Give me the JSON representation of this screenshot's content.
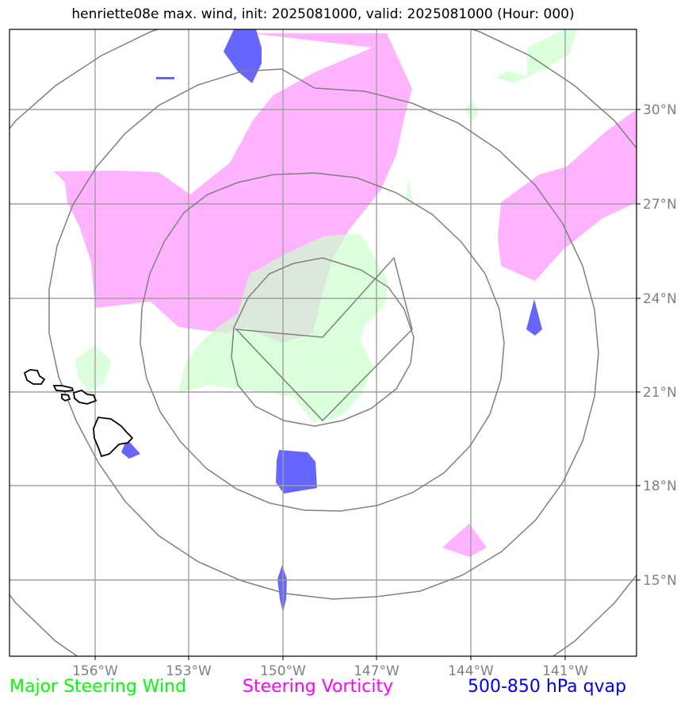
{
  "title": "henriette08e max. wind, init: 2025081000, valid: 2025081000 (Hour: 000)",
  "legend": [
    {
      "label": "Major Steering Wind",
      "color": "#00ff00"
    },
    {
      "label": "Steering Vorticity",
      "color": "#ff00ff"
    },
    {
      "label": "500-850 hPa qvap",
      "color": "#0000ee"
    }
  ],
  "map": {
    "longitude_labels": [
      "156°W",
      "153°W",
      "150°W",
      "147°W",
      "144°W",
      "141°W"
    ],
    "latitude_labels": [
      "30°N",
      "27°N",
      "24°N",
      "21°N",
      "18°N",
      "15°N"
    ],
    "fill_colors": {
      "steering_wind": "#ccffcc",
      "steering_vorticity": "#ffb3ff",
      "qvap": "#6666ff"
    },
    "grid_color": "#a0a0a0",
    "range_ring_color": "#808080",
    "coastline_color": "#000000"
  }
}
